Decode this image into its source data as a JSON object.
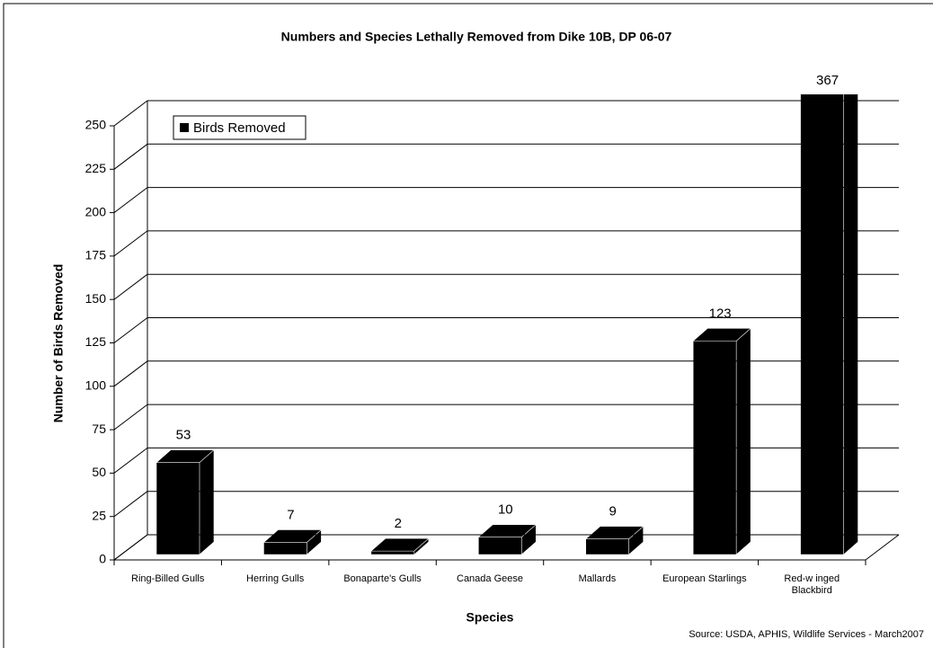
{
  "chart_data": {
    "type": "bar3d",
    "title": "Numbers and Species Lethally Removed from Dike 10B, DP 06-07",
    "categories": [
      "Ring-Billed Gulls",
      "Herring Gulls",
      "Bonaparte's Gulls",
      "Canada Geese",
      "Mallards",
      "European Starlings",
      "Red-w inged Blackbird"
    ],
    "series": [
      {
        "name": "Birds Removed",
        "color": "#000000",
        "values": [
          53,
          7,
          2,
          10,
          9,
          123,
          367
        ]
      }
    ],
    "ylim": [
      0,
      250
    ],
    "yticks": [
      0,
      25,
      50,
      75,
      100,
      125,
      150,
      175,
      200,
      225,
      250
    ],
    "grid": true,
    "x_label": "Species",
    "y_label": "Number of Birds Removed",
    "source": "Source: USDA, APHIS, Wildlife Services - March2007"
  }
}
